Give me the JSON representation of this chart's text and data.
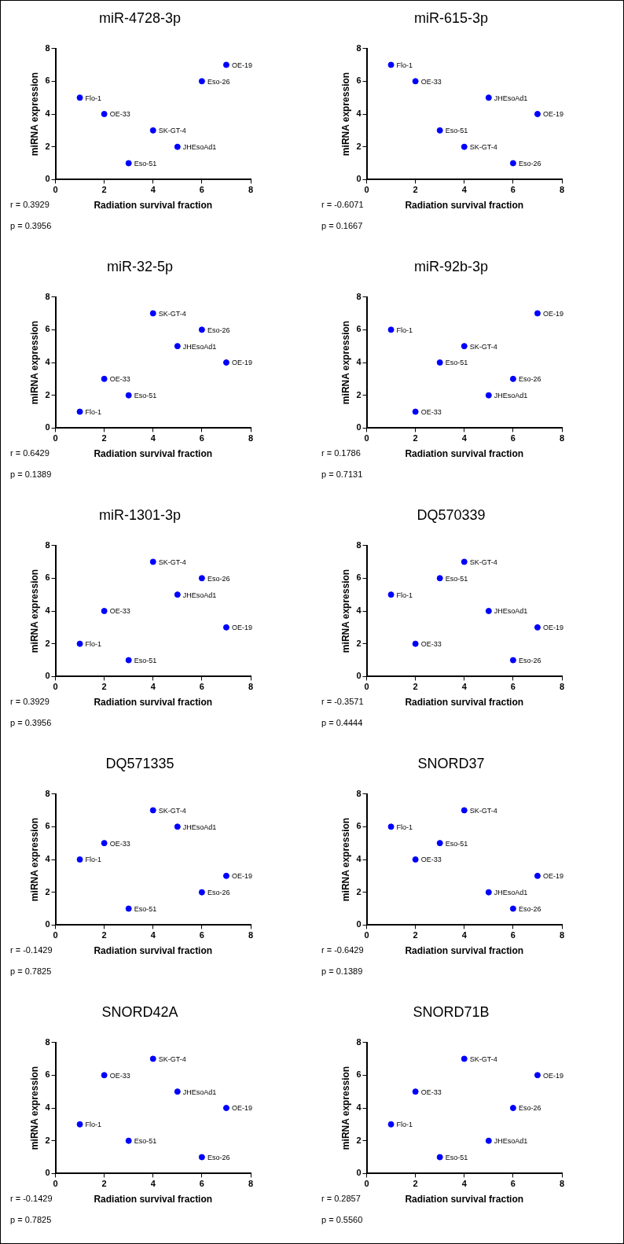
{
  "chart_data": [
    {
      "type": "scatter",
      "title": "miR-4728-3p",
      "xlabel": "Radiation survival fraction",
      "ylabel": "miRNA expression",
      "x": [
        1,
        2,
        3,
        4,
        5,
        6,
        7
      ],
      "values": [
        5,
        4,
        1,
        3,
        2,
        6,
        7
      ],
      "color": "#0000ff",
      "xlim": [
        0,
        8
      ],
      "ylim": [
        0,
        8
      ],
      "xticks": [
        0,
        2,
        4,
        6,
        8
      ],
      "yticks": [
        0,
        2,
        4,
        6,
        8
      ],
      "grid": false,
      "legend": false,
      "marker": "circle",
      "annotations": [
        {
          "text": "Flo-1",
          "x": 1,
          "y": 5
        },
        {
          "text": "OE-33",
          "x": 2,
          "y": 4
        },
        {
          "text": "Eso-51",
          "x": 3,
          "y": 1
        },
        {
          "text": "SK-GT-4",
          "x": 4,
          "y": 3
        },
        {
          "text": "JHEsoAd1",
          "x": 5,
          "y": 2
        },
        {
          "text": "Eso-26",
          "x": 6,
          "y": 6
        },
        {
          "text": "OE-19",
          "x": 7,
          "y": 7
        },
        "r = 0.3929",
        "p = 0.3956"
      ]
    },
    {
      "type": "scatter",
      "title": "miR-615-3p",
      "xlabel": "Radiation survival fraction",
      "ylabel": "miRNA expression",
      "x": [
        1,
        2,
        3,
        4,
        5,
        6,
        7
      ],
      "values": [
        7,
        6,
        3,
        2,
        5,
        1,
        4
      ],
      "color": "#0000ff",
      "xlim": [
        0,
        8
      ],
      "ylim": [
        0,
        8
      ],
      "xticks": [
        0,
        2,
        4,
        6,
        8
      ],
      "yticks": [
        0,
        2,
        4,
        6,
        8
      ],
      "grid": false,
      "legend": false,
      "marker": "circle",
      "annotations": [
        {
          "text": "Flo-1",
          "x": 1,
          "y": 7
        },
        {
          "text": "OE-33",
          "x": 2,
          "y": 6
        },
        {
          "text": "Eso-51",
          "x": 3,
          "y": 3
        },
        {
          "text": "SK-GT-4",
          "x": 4,
          "y": 2
        },
        {
          "text": "JHEsoAd1",
          "x": 5,
          "y": 5
        },
        {
          "text": "Eso-26",
          "x": 6,
          "y": 1
        },
        {
          "text": "OE-19",
          "x": 7,
          "y": 4
        },
        "r = -0.6071",
        "p = 0.1667"
      ]
    },
    {
      "type": "scatter",
      "title": "miR-32-5p",
      "xlabel": "Radiation survival fraction",
      "ylabel": "miRNA expression",
      "x": [
        1,
        2,
        3,
        4,
        5,
        6,
        7
      ],
      "values": [
        1,
        3,
        2,
        7,
        5,
        6,
        4
      ],
      "color": "#0000ff",
      "xlim": [
        0,
        8
      ],
      "ylim": [
        0,
        8
      ],
      "xticks": [
        0,
        2,
        4,
        6,
        8
      ],
      "yticks": [
        0,
        2,
        4,
        6,
        8
      ],
      "grid": false,
      "legend": false,
      "marker": "circle",
      "annotations": [
        {
          "text": "Flo-1",
          "x": 1,
          "y": 1
        },
        {
          "text": "OE-33",
          "x": 2,
          "y": 3
        },
        {
          "text": "Eso-51",
          "x": 3,
          "y": 2
        },
        {
          "text": "SK-GT-4",
          "x": 4,
          "y": 7
        },
        {
          "text": "JHEsoAd1",
          "x": 5,
          "y": 5
        },
        {
          "text": "Eso-26",
          "x": 6,
          "y": 6
        },
        {
          "text": "OE-19",
          "x": 7,
          "y": 4
        },
        "r = 0.6429",
        "p = 0.1389"
      ]
    },
    {
      "type": "scatter",
      "title": "miR-92b-3p",
      "xlabel": "Radiation survival fraction",
      "ylabel": "miRNA expression",
      "x": [
        1,
        2,
        3,
        4,
        5,
        6,
        7
      ],
      "values": [
        6,
        1,
        4,
        5,
        2,
        3,
        7
      ],
      "color": "#0000ff",
      "xlim": [
        0,
        8
      ],
      "ylim": [
        0,
        8
      ],
      "xticks": [
        0,
        2,
        4,
        6,
        8
      ],
      "yticks": [
        0,
        2,
        4,
        6,
        8
      ],
      "grid": false,
      "legend": false,
      "marker": "circle",
      "annotations": [
        {
          "text": "Flo-1",
          "x": 1,
          "y": 6
        },
        {
          "text": "OE-33",
          "x": 2,
          "y": 1
        },
        {
          "text": "Eso-51",
          "x": 3,
          "y": 4
        },
        {
          "text": "SK-GT-4",
          "x": 4,
          "y": 5
        },
        {
          "text": "JHEsoAd1",
          "x": 5,
          "y": 2
        },
        {
          "text": "Eso-26",
          "x": 6,
          "y": 3
        },
        {
          "text": "OE-19",
          "x": 7,
          "y": 7
        },
        "r = 0.1786",
        "p = 0.7131"
      ]
    },
    {
      "type": "scatter",
      "title": "miR-1301-3p",
      "xlabel": "Radiation survival fraction",
      "ylabel": "miRNA expression",
      "x": [
        1,
        2,
        3,
        4,
        5,
        6,
        7
      ],
      "values": [
        2,
        4,
        1,
        7,
        5,
        6,
        3
      ],
      "color": "#0000ff",
      "xlim": [
        0,
        8
      ],
      "ylim": [
        0,
        8
      ],
      "xticks": [
        0,
        2,
        4,
        6,
        8
      ],
      "yticks": [
        0,
        2,
        4,
        6,
        8
      ],
      "grid": false,
      "legend": false,
      "marker": "circle",
      "annotations": [
        {
          "text": "Flo-1",
          "x": 1,
          "y": 2
        },
        {
          "text": "OE-33",
          "x": 2,
          "y": 4
        },
        {
          "text": "Eso-51",
          "x": 3,
          "y": 1
        },
        {
          "text": "SK-GT-4",
          "x": 4,
          "y": 7
        },
        {
          "text": "JHEsoAd1",
          "x": 5,
          "y": 5
        },
        {
          "text": "Eso-26",
          "x": 6,
          "y": 6
        },
        {
          "text": "OE-19",
          "x": 7,
          "y": 3
        },
        "r = 0.3929",
        "p = 0.3956"
      ]
    },
    {
      "type": "scatter",
      "title": "DQ570339",
      "xlabel": "Radiation survival fraction",
      "ylabel": "miRNA expression",
      "x": [
        1,
        2,
        3,
        4,
        5,
        6,
        7
      ],
      "values": [
        5,
        2,
        6,
        7,
        4,
        1,
        3
      ],
      "color": "#0000ff",
      "xlim": [
        0,
        8
      ],
      "ylim": [
        0,
        8
      ],
      "xticks": [
        0,
        2,
        4,
        6,
        8
      ],
      "yticks": [
        0,
        2,
        4,
        6,
        8
      ],
      "grid": false,
      "legend": false,
      "marker": "circle",
      "annotations": [
        {
          "text": "Flo-1",
          "x": 1,
          "y": 5
        },
        {
          "text": "OE-33",
          "x": 2,
          "y": 2
        },
        {
          "text": "Eso-51",
          "x": 3,
          "y": 6
        },
        {
          "text": "SK-GT-4",
          "x": 4,
          "y": 7
        },
        {
          "text": "JHEsoAd1",
          "x": 5,
          "y": 4
        },
        {
          "text": "Eso-26",
          "x": 6,
          "y": 1
        },
        {
          "text": "OE-19",
          "x": 7,
          "y": 3
        },
        "r = -0.3571",
        "p = 0.4444"
      ]
    },
    {
      "type": "scatter",
      "title": "DQ571335",
      "xlabel": "Radiation survival fraction",
      "ylabel": "miRNA expression",
      "x": [
        1,
        2,
        3,
        4,
        5,
        6,
        7
      ],
      "values": [
        4,
        5,
        1,
        7,
        6,
        2,
        3
      ],
      "color": "#0000ff",
      "xlim": [
        0,
        8
      ],
      "ylim": [
        0,
        8
      ],
      "xticks": [
        0,
        2,
        4,
        6,
        8
      ],
      "yticks": [
        0,
        2,
        4,
        6,
        8
      ],
      "grid": false,
      "legend": false,
      "marker": "circle",
      "annotations": [
        {
          "text": "Flo-1",
          "x": 1,
          "y": 4
        },
        {
          "text": "OE-33",
          "x": 2,
          "y": 5
        },
        {
          "text": "Eso-51",
          "x": 3,
          "y": 1
        },
        {
          "text": "SK-GT-4",
          "x": 4,
          "y": 7
        },
        {
          "text": "JHEsoAd1",
          "x": 5,
          "y": 6
        },
        {
          "text": "Eso-26",
          "x": 6,
          "y": 2
        },
        {
          "text": "OE-19",
          "x": 7,
          "y": 3
        },
        "r = -0.1429",
        "p = 0.7825"
      ]
    },
    {
      "type": "scatter",
      "title": "SNORD37",
      "xlabel": "Radiation survival fraction",
      "ylabel": "miRNA expression",
      "x": [
        1,
        2,
        3,
        4,
        5,
        6,
        7
      ],
      "values": [
        6,
        4,
        5,
        7,
        2,
        1,
        3
      ],
      "color": "#0000ff",
      "xlim": [
        0,
        8
      ],
      "ylim": [
        0,
        8
      ],
      "xticks": [
        0,
        2,
        4,
        6,
        8
      ],
      "yticks": [
        0,
        2,
        4,
        6,
        8
      ],
      "grid": false,
      "legend": false,
      "marker": "circle",
      "annotations": [
        {
          "text": "Flo-1",
          "x": 1,
          "y": 6
        },
        {
          "text": "OE-33",
          "x": 2,
          "y": 4
        },
        {
          "text": "Eso-51",
          "x": 3,
          "y": 5
        },
        {
          "text": "SK-GT-4",
          "x": 4,
          "y": 7
        },
        {
          "text": "JHEsoAd1",
          "x": 5,
          "y": 2
        },
        {
          "text": "Eso-26",
          "x": 6,
          "y": 1
        },
        {
          "text": "OE-19",
          "x": 7,
          "y": 3
        },
        "r = -0.6429",
        "p = 0.1389"
      ]
    },
    {
      "type": "scatter",
      "title": "SNORD42A",
      "xlabel": "Radiation survival fraction",
      "ylabel": "miRNA expression",
      "x": [
        1,
        2,
        3,
        4,
        5,
        6,
        7
      ],
      "values": [
        3,
        6,
        2,
        7,
        5,
        1,
        4
      ],
      "color": "#0000ff",
      "xlim": [
        0,
        8
      ],
      "ylim": [
        0,
        8
      ],
      "xticks": [
        0,
        2,
        4,
        6,
        8
      ],
      "yticks": [
        0,
        2,
        4,
        6,
        8
      ],
      "grid": false,
      "legend": false,
      "marker": "circle",
      "annotations": [
        {
          "text": "Flo-1",
          "x": 1,
          "y": 3
        },
        {
          "text": "OE-33",
          "x": 2,
          "y": 6
        },
        {
          "text": "Eso-51",
          "x": 3,
          "y": 2
        },
        {
          "text": "SK-GT-4",
          "x": 4,
          "y": 7
        },
        {
          "text": "JHEsoAd1",
          "x": 5,
          "y": 5
        },
        {
          "text": "Eso-26",
          "x": 6,
          "y": 1
        },
        {
          "text": "OE-19",
          "x": 7,
          "y": 4
        },
        "r = -0.1429",
        "p = 0.7825"
      ]
    },
    {
      "type": "scatter",
      "title": "SNORD71B",
      "xlabel": "Radiation survival fraction",
      "ylabel": "miRNA expression",
      "x": [
        1,
        2,
        3,
        4,
        5,
        6,
        7
      ],
      "values": [
        3,
        5,
        1,
        7,
        2,
        4,
        6
      ],
      "color": "#0000ff",
      "xlim": [
        0,
        8
      ],
      "ylim": [
        0,
        8
      ],
      "xticks": [
        0,
        2,
        4,
        6,
        8
      ],
      "yticks": [
        0,
        2,
        4,
        6,
        8
      ],
      "grid": false,
      "legend": false,
      "marker": "circle",
      "annotations": [
        {
          "text": "Flo-1",
          "x": 1,
          "y": 3
        },
        {
          "text": "OE-33",
          "x": 2,
          "y": 5
        },
        {
          "text": "Eso-51",
          "x": 3,
          "y": 1
        },
        {
          "text": "SK-GT-4",
          "x": 4,
          "y": 7
        },
        {
          "text": "JHEsoAd1",
          "x": 5,
          "y": 2
        },
        {
          "text": "Eso-26",
          "x": 6,
          "y": 4
        },
        {
          "text": "OE-19",
          "x": 7,
          "y": 6
        },
        "r = 0.2857",
        "p = 0.5560"
      ]
    }
  ]
}
